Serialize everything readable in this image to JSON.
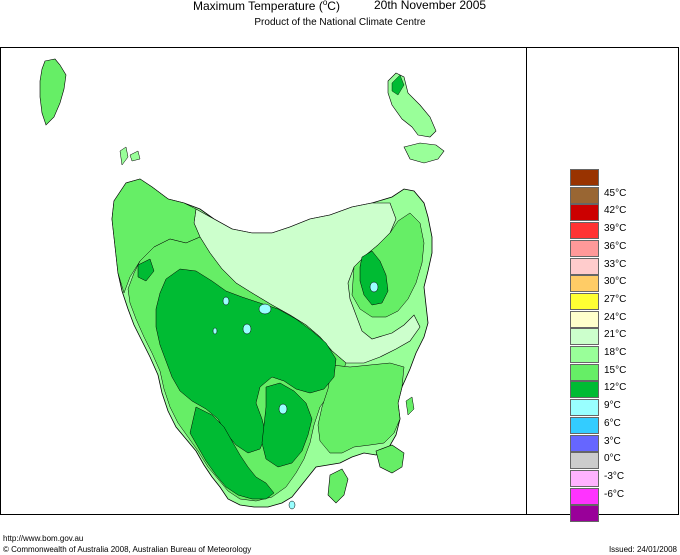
{
  "header": {
    "title_part1": "Maximum Temperature (",
    "title_degree": "o",
    "title_part2": "C)",
    "date": "20th November 2005",
    "subtitle": "Product of the National Climate Centre"
  },
  "legend": {
    "items": [
      {
        "label": "",
        "color": "#993300"
      },
      {
        "label": "45°C",
        "color": "#996633"
      },
      {
        "label": "42°C",
        "color": "#cc0000"
      },
      {
        "label": "39°C",
        "color": "#ff3333"
      },
      {
        "label": "36°C",
        "color": "#ff9999"
      },
      {
        "label": "33°C",
        "color": "#ffcccc"
      },
      {
        "label": "30°C",
        "color": "#ffcc66"
      },
      {
        "label": "27°C",
        "color": "#ffff33"
      },
      {
        "label": "24°C",
        "color": "#ffffcc"
      },
      {
        "label": "21°C",
        "color": "#ccffcc"
      },
      {
        "label": "18°C",
        "color": "#99ff99"
      },
      {
        "label": "15°C",
        "color": "#66ee66"
      },
      {
        "label": "12°C",
        "color": "#00bb33"
      },
      {
        "label": "9°C",
        "color": "#99ffff"
      },
      {
        "label": "6°C",
        "color": "#33ccff"
      },
      {
        "label": "3°C",
        "color": "#6666ff"
      },
      {
        "label": "0°C",
        "color": "#cccccc"
      },
      {
        "label": "-3°C",
        "color": "#ffb3ff"
      },
      {
        "label": "-6°C",
        "color": "#ff33ff"
      },
      {
        "label": "",
        "color": "#990099"
      }
    ]
  },
  "footer": {
    "url": "http://www.bom.gov.au",
    "copyright": "© Commonwealth of Australia 2008, Australian Bureau of Meteorology",
    "issued": "Issued: 24/01/2008"
  },
  "map_colors": {
    "land_base": "#66ee66",
    "warm_zone": "#ccffcc",
    "mid_zone": "#99ff99",
    "cool_zone": "#00bb33",
    "cold_spots": "#99ffff"
  }
}
